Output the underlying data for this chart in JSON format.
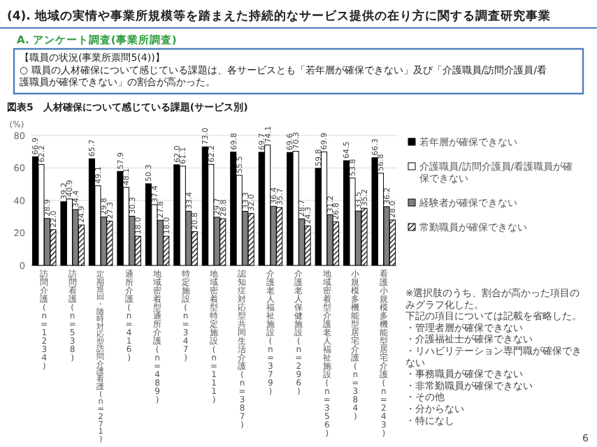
{
  "chart_data": {
    "type": "bar",
    "title": "図表5　人材確保について感じている課題(サービス別)",
    "ylabel": "(%)",
    "categories": [
      "訪問介護(n=1234)",
      "訪問看護(n=538)",
      "定期巡回・随時対応型訪問介護看護(n=271)",
      "通所介護(n=416)",
      "地域密着型通所介護(n=489)",
      "特定施設(n=347)",
      "地域密着型特定施設(n=111)",
      "認知症対応型共同生活介護(n=387)",
      "介護老人福祉施設(n=379)",
      "介護老人保健施設(n=296)",
      "地域密着型介護老人福祉施設(n=356)",
      "小規模多機能型居宅介護(n=384)",
      "看護小規模多機能型居宅介護(n=243)"
    ],
    "series": [
      {
        "name": "若年層が確保できない",
        "color": "#000000",
        "values": [
          66.9,
          39.2,
          65.7,
          57.9,
          50.3,
          62.0,
          73.0,
          69.8,
          69.7,
          69.6,
          59.8,
          64.5,
          66.3
        ],
        "value_labels": [
          "66.9",
          "39.2",
          "65.7",
          "57.9",
          "50.3",
          "62.0",
          "73.0",
          "69.8",
          "69.7",
          "69.6",
          "59.8",
          "64.5",
          "66.3"
        ]
      },
      {
        "name": "介護職員/訪問介護員/看護職員が確保できない",
        "color": "#ffffff",
        "values": [
          62.2,
          40.9,
          49.1,
          48.1,
          37.4,
          61.1,
          62.2,
          55.5,
          74.1,
          70.3,
          69.9,
          53.8,
          56.8
        ],
        "value_labels": [
          "62.2",
          "40.9",
          "49.1",
          "48.1",
          "37.4",
          "61.1",
          "62.2",
          "55.5",
          "74.1",
          "70.3",
          "69.9",
          "53.8",
          "56.8"
        ]
      },
      {
        "name": "経験者が確保できない",
        "color": "#808080",
        "values": [
          28.9,
          34.4,
          29.8,
          30.3,
          27.8,
          33.4,
          29.7,
          33.3,
          36.4,
          28.7,
          31.2,
          33.5,
          36.2
        ],
        "value_labels": [
          "28.9",
          "34.4",
          "29.8",
          "30.3",
          "27.8",
          "33.4",
          "29.7",
          "33.3",
          "36.4",
          "28.7",
          "31.2",
          "33.5",
          "36.2"
        ]
      },
      {
        "name": "常勤職員が確保できない",
        "color": "#000000",
        "values": [
          22.0,
          24.9,
          27.3,
          18.0,
          18.0,
          20.8,
          28.8,
          32.0,
          35.7,
          24.3,
          26.8,
          35.2,
          28.0
        ],
        "value_labels": [
          "22.0",
          "24.9",
          "27.3",
          "18.0",
          "18.0",
          "20.8",
          "28.8",
          "32.0",
          "35.7",
          "24.3",
          "26.8",
          "35.2",
          "28.0"
        ]
      }
    ],
    "ylim": [
      0,
      80
    ],
    "yticks": [
      0,
      20,
      40,
      60,
      80
    ],
    "grid": "y",
    "legend": "right",
    "annotations": [
      "(4). 地域の実情や事業所規模等を踏まえた持続的なサービス提供の在り方に関する調査研究事業",
      "A. アンケート調査(事業所調査)",
      "【職員の状況(事業所票問5(4))】",
      "○ 職員の人材確保について感じている課題は、各サービスとも「若年層が確保できない」及び「介護職員/訪問介護員/看護職員が確保できない」の割合が高かった。",
      "※選択肢のうち、割合が高かった項目のみグラフ化した。",
      "下記の項目については記載を省略した。",
      "・管理者層が確保できない",
      "・介護福祉士が確保できない",
      "・リハビリテーション専門職が確保できない",
      "・事務職員が確保できない",
      "・非常勤職員が確保できない",
      "・その他",
      "・分からない",
      "・特になし",
      "6"
    ]
  }
}
